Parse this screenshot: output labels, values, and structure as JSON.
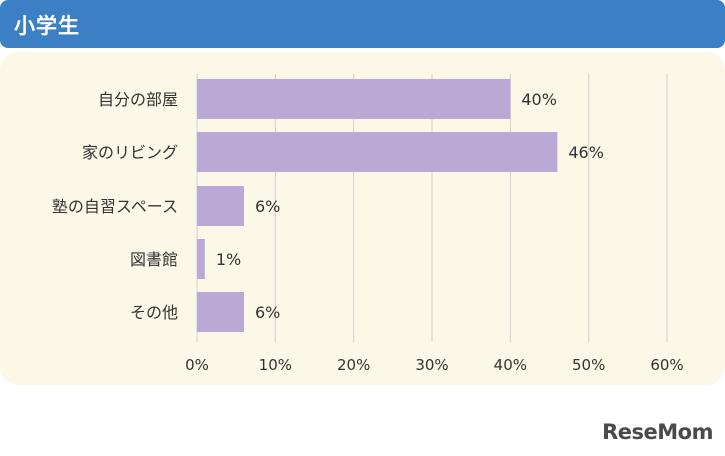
{
  "header": {
    "title": "小学生"
  },
  "logo": {
    "text": "ReseMom"
  },
  "chart_data": {
    "type": "bar",
    "orientation": "horizontal",
    "title": "",
    "categories": [
      "自分の部屋",
      "家のリビング",
      "塾の自習スペース",
      "図書館",
      "その他"
    ],
    "values": [
      40,
      46,
      6,
      1,
      6
    ],
    "value_labels": [
      "40%",
      "46%",
      "6%",
      "1%",
      "6%"
    ],
    "x_ticks": [
      0,
      10,
      20,
      30,
      40,
      50,
      60
    ],
    "x_tick_labels": [
      "0%",
      "10%",
      "20%",
      "30%",
      "40%",
      "50%",
      "60%"
    ],
    "xlim": [
      0,
      60
    ],
    "grid": true,
    "bar_color": "#b9a9d4",
    "grid_color": "#cfcfcf"
  }
}
